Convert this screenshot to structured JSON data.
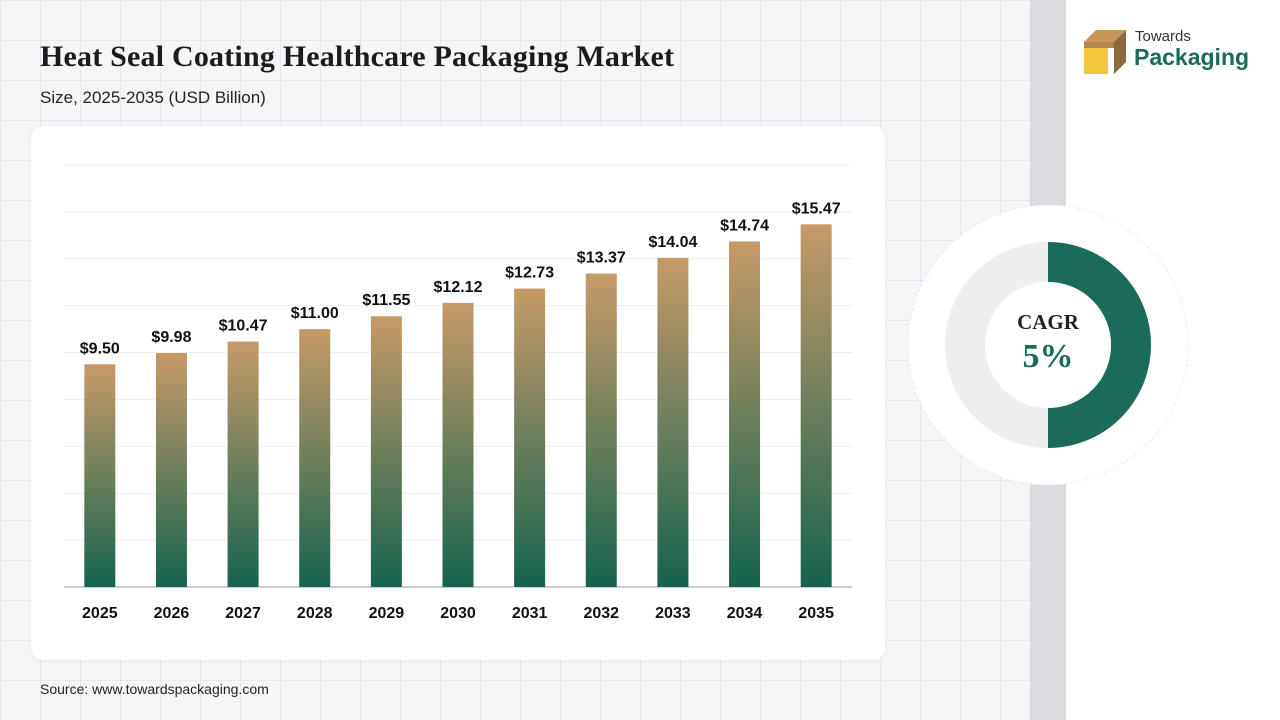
{
  "header": {
    "title": "Heat Seal Coating Healthcare Packaging Market",
    "subtitle": "Size, 2025-2035 (USD Billion)"
  },
  "logo": {
    "line1": "Towards",
    "line2": "Packaging"
  },
  "cagr": {
    "label": "CAGR",
    "value": "5%",
    "fraction": 0.5
  },
  "source": "Source: www.towardspackaging.com",
  "colors": {
    "bar_top": "#c79a68",
    "bar_bottom": "#15634f",
    "accent": "#1a6b5a",
    "donut_track": "#efefef"
  },
  "chart_data": {
    "type": "bar",
    "title": "Heat Seal Coating Healthcare Packaging Market",
    "categories": [
      "2025",
      "2026",
      "2027",
      "2028",
      "2029",
      "2030",
      "2031",
      "2032",
      "2033",
      "2034",
      "2035"
    ],
    "values": [
      9.5,
      9.98,
      10.47,
      11.0,
      11.55,
      12.12,
      12.73,
      13.37,
      14.04,
      14.74,
      15.47
    ],
    "data_labels": [
      "$9.50",
      "$9.98",
      "$10.47",
      "$11.00",
      "$11.55",
      "$12.12",
      "$12.73",
      "$13.37",
      "$14.04",
      "$14.74",
      "$15.47"
    ],
    "xlabel": "",
    "ylabel": "",
    "ylim": [
      0,
      18
    ],
    "grid": true,
    "legend": "none"
  }
}
